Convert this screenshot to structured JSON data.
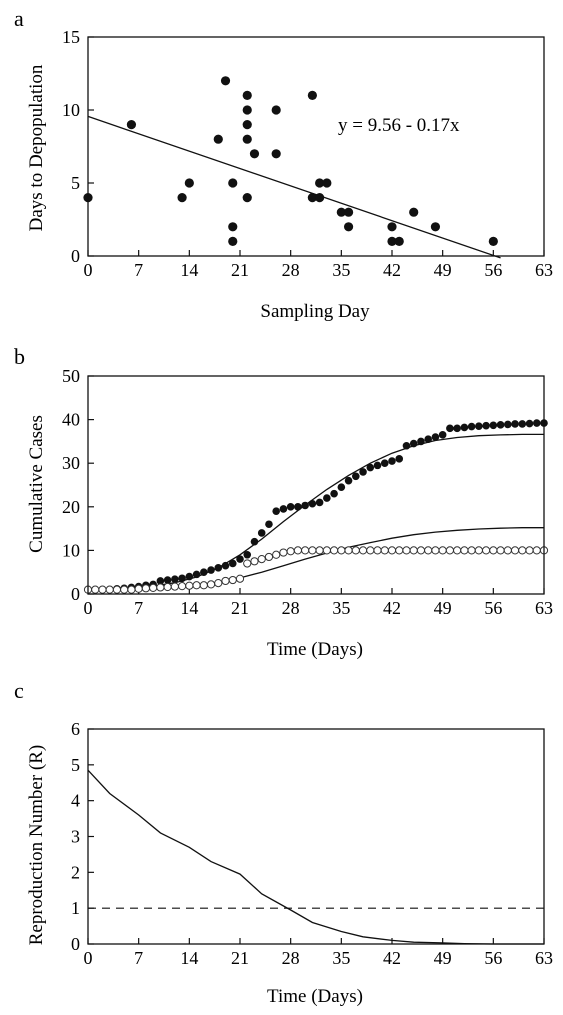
{
  "chart_data": [
    {
      "panel": "a",
      "type": "scatter",
      "title": "",
      "xlabel": "Sampling Day",
      "ylabel": "Days to Depopulation",
      "xlim": [
        0,
        63
      ],
      "ylim": [
        0,
        15
      ],
      "xticks": [
        0,
        7,
        14,
        21,
        28,
        35,
        42,
        49,
        56,
        63
      ],
      "yticks": [
        0,
        5,
        10,
        15
      ],
      "grid": false,
      "annotation": "y = 9.56 - 0.17x",
      "regression": {
        "intercept": 9.56,
        "slope": -0.17,
        "x_range": [
          0,
          57
        ]
      },
      "points": [
        [
          0,
          4
        ],
        [
          6,
          9
        ],
        [
          13,
          4
        ],
        [
          14,
          5
        ],
        [
          18,
          8
        ],
        [
          19,
          12
        ],
        [
          20,
          5
        ],
        [
          20,
          2
        ],
        [
          20,
          1
        ],
        [
          22,
          11
        ],
        [
          22,
          10
        ],
        [
          22,
          9
        ],
        [
          22,
          8
        ],
        [
          22,
          4
        ],
        [
          23,
          7
        ],
        [
          26,
          10
        ],
        [
          26,
          7
        ],
        [
          31,
          11
        ],
        [
          31,
          4
        ],
        [
          32,
          4
        ],
        [
          32,
          5
        ],
        [
          33,
          5
        ],
        [
          35,
          3
        ],
        [
          36,
          3
        ],
        [
          36,
          2
        ],
        [
          42,
          2
        ],
        [
          42,
          1
        ],
        [
          43,
          1
        ],
        [
          45,
          3
        ],
        [
          48,
          2
        ],
        [
          56,
          1
        ]
      ]
    },
    {
      "panel": "b",
      "type": "line",
      "title": "",
      "xlabel": "Time  (Days)",
      "ylabel": "Cumulative  Cases",
      "xlim": [
        0,
        63
      ],
      "ylim": [
        0,
        50
      ],
      "xticks": [
        0,
        7,
        14,
        21,
        28,
        35,
        42,
        49,
        56,
        63
      ],
      "yticks": [
        0,
        10,
        20,
        30,
        40,
        50
      ],
      "grid": false,
      "series": [
        {
          "marker": "filled-circle",
          "x": [
            0,
            1,
            2,
            3,
            4,
            5,
            6,
            7,
            8,
            9,
            10,
            11,
            12,
            13,
            14,
            15,
            16,
            17,
            18,
            19,
            20,
            21,
            22,
            23,
            24,
            25,
            26,
            27,
            28,
            29,
            30,
            31,
            32,
            33,
            34,
            35,
            36,
            37,
            38,
            39,
            40,
            41,
            42,
            43,
            44,
            45,
            46,
            47,
            48,
            49,
            50,
            51,
            52,
            53,
            54,
            55,
            56,
            57,
            58,
            59,
            60,
            61,
            62,
            63
          ],
          "values": [
            1,
            1,
            1,
            1,
            1.2,
            1.3,
            1.5,
            1.7,
            2,
            2.2,
            3,
            3.2,
            3.4,
            3.6,
            4,
            4.5,
            5,
            5.5,
            6,
            6.5,
            7,
            8,
            9,
            12,
            14,
            16,
            19,
            19.5,
            20,
            20,
            20.3,
            20.7,
            21,
            22,
            23,
            24.5,
            26,
            27,
            28,
            29,
            29.5,
            30,
            30.5,
            31,
            34,
            34.5,
            35,
            35.5,
            36,
            36.5,
            38,
            38,
            38.2,
            38.4,
            38.5,
            38.6,
            38.7,
            38.8,
            38.9,
            39,
            39,
            39.1,
            39.2,
            39.2
          ]
        },
        {
          "marker": "open-circle",
          "x": [
            0,
            1,
            2,
            3,
            4,
            5,
            6,
            7,
            8,
            9,
            10,
            11,
            12,
            13,
            14,
            15,
            16,
            17,
            18,
            19,
            20,
            21,
            22,
            23,
            24,
            25,
            26,
            27,
            28,
            29,
            30,
            31,
            32,
            33,
            34,
            35,
            36,
            37,
            38,
            39,
            40,
            41,
            42,
            43,
            44,
            45,
            46,
            47,
            48,
            49,
            50,
            51,
            52,
            53,
            54,
            55,
            56,
            57,
            58,
            59,
            60,
            61,
            62,
            63
          ],
          "values": [
            1,
            1,
            1,
            1,
            1,
            1,
            1,
            1.2,
            1.3,
            1.4,
            1.5,
            1.6,
            1.7,
            1.8,
            1.9,
            2,
            2,
            2.2,
            2.5,
            3,
            3.2,
            3.5,
            7,
            7.5,
            8,
            8.5,
            9,
            9.5,
            9.8,
            10,
            10,
            10,
            10,
            10,
            10,
            10,
            10,
            10,
            10,
            10,
            10,
            10,
            10,
            10,
            10,
            10,
            10,
            10,
            10,
            10,
            10,
            10,
            10,
            10,
            10,
            10,
            10,
            10,
            10,
            10,
            10,
            10,
            10,
            10
          ]
        },
        {
          "marker": "line",
          "x": [
            0,
            3,
            6,
            9,
            12,
            15,
            18,
            21,
            24,
            27,
            30,
            33,
            36,
            39,
            42,
            45,
            48,
            51,
            54,
            57,
            60,
            63
          ],
          "values": [
            1,
            1.1,
            1.3,
            1.8,
            2.6,
            3.9,
            6,
            9,
            12.6,
            16.6,
            20.4,
            24,
            27.2,
            30,
            32.3,
            34,
            35.2,
            35.9,
            36.3,
            36.5,
            36.6,
            36.6
          ]
        },
        {
          "marker": "line",
          "x": [
            0,
            3,
            6,
            9,
            12,
            15,
            18,
            21,
            24,
            27,
            30,
            33,
            36,
            39,
            42,
            45,
            48,
            51,
            54,
            57,
            60,
            63
          ],
          "values": [
            1,
            1,
            1.1,
            1.2,
            1.5,
            2,
            2.7,
            3.7,
            5,
            6.5,
            8,
            9.4,
            10.7,
            11.8,
            12.8,
            13.6,
            14.2,
            14.6,
            14.9,
            15.1,
            15.2,
            15.2
          ]
        }
      ]
    },
    {
      "panel": "c",
      "type": "line",
      "title": "",
      "xlabel": "Time  (Days)",
      "ylabel": "Reproduction  Number  (R)",
      "xlim": [
        0,
        63
      ],
      "ylim": [
        0,
        6
      ],
      "xticks": [
        0,
        7,
        14,
        21,
        28,
        35,
        42,
        49,
        56,
        63
      ],
      "yticks": [
        0,
        1,
        2,
        3,
        4,
        5,
        6
      ],
      "grid": false,
      "reference_line": {
        "y": 1,
        "style": "dashed"
      },
      "series": [
        {
          "marker": "line",
          "x": [
            0,
            3,
            7,
            10,
            14,
            17,
            21,
            24,
            28,
            31,
            35,
            38,
            42,
            45,
            49,
            52,
            56,
            63
          ],
          "values": [
            4.85,
            4.2,
            3.6,
            3.1,
            2.7,
            2.3,
            1.95,
            1.4,
            0.95,
            0.6,
            0.35,
            0.2,
            0.1,
            0.05,
            0.03,
            0.01,
            0,
            0
          ]
        }
      ]
    }
  ]
}
